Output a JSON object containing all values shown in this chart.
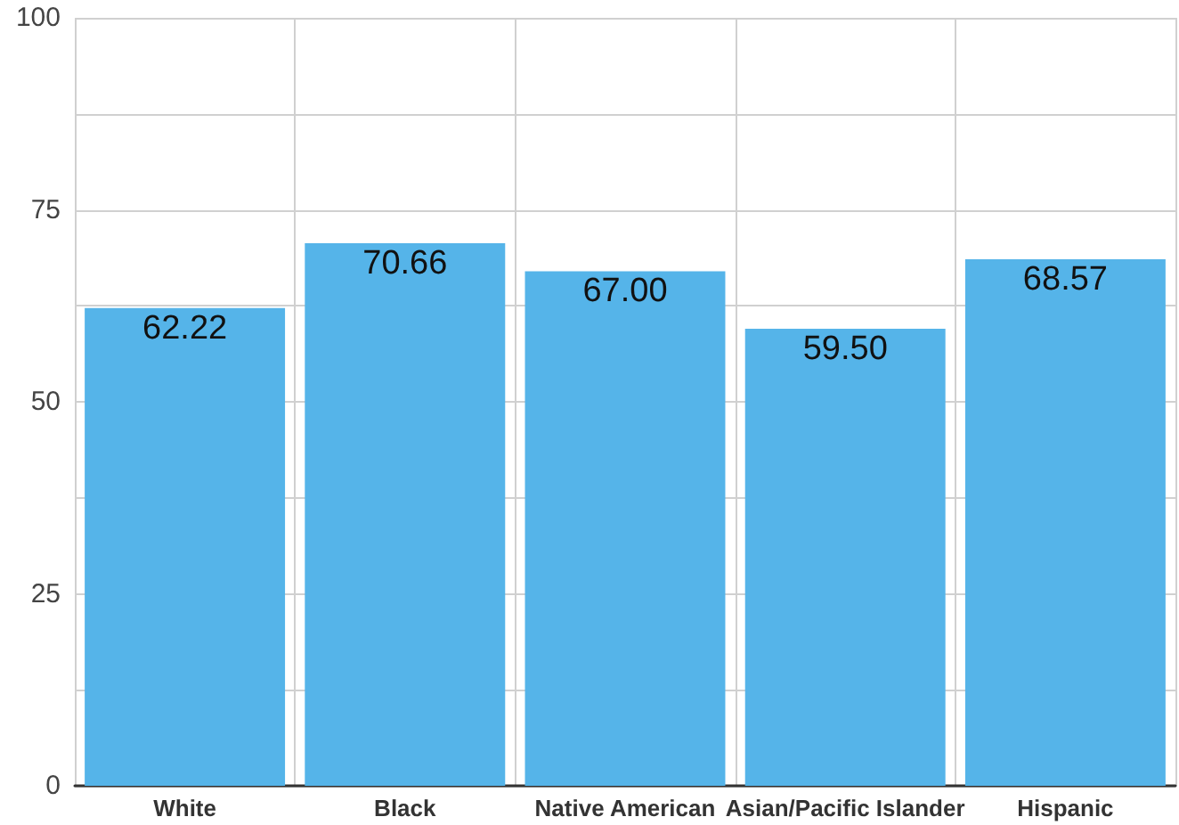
{
  "chart_data": {
    "type": "bar",
    "categories": [
      "White",
      "Black",
      "Native American",
      "Asian/Pacific Islander",
      "Hispanic"
    ],
    "values": [
      62.22,
      70.66,
      67.0,
      59.5,
      68.57
    ],
    "value_labels": [
      "62.22",
      "70.66",
      "67.00",
      "59.50",
      "68.57"
    ],
    "color": "#55b4e9",
    "ylim": [
      0,
      100
    ],
    "yticks": [
      0,
      {
        "value": 12.5,
        "label": null
      },
      25,
      {
        "value": 37.5,
        "label": null
      },
      50,
      {
        "value": 62.5,
        "label": null
      },
      75,
      {
        "value": 87.5,
        "label": null
      },
      100
    ],
    "grid": true
  }
}
